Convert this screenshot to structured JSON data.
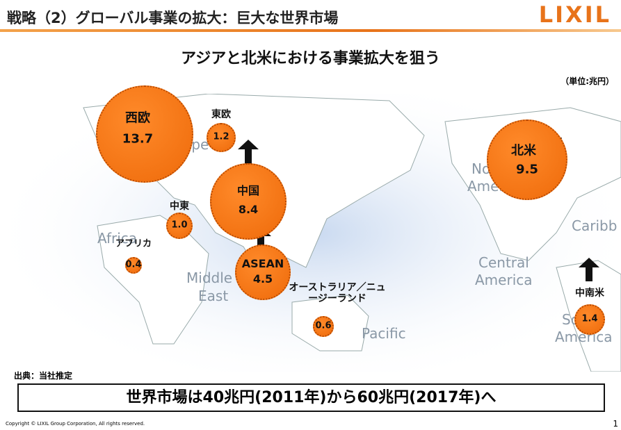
{
  "header": {
    "title": "戦略（2）グローバル事業の拡大：巨大な世界市場",
    "logo": "LIXIL"
  },
  "subtitle": "アジアと北米における事業拡大を狙う",
  "unit": "（単位:兆円）",
  "map_labels": [
    "Europe",
    "Africa",
    "Middle",
    "East",
    "Pacific",
    "North",
    "America",
    "Central",
    "America",
    "Caribb",
    "South",
    "America"
  ],
  "regions": [
    {
      "name": "西欧",
      "value": 13.7,
      "value_label": "13.7"
    },
    {
      "name": "東欧",
      "value": 1.2,
      "value_label": "1.2"
    },
    {
      "name": "中国",
      "value": 8.4,
      "value_label": "8.4"
    },
    {
      "name": "中東",
      "value": 1.0,
      "value_label": "1.0"
    },
    {
      "name": "アフリカ",
      "value": 0.4,
      "value_label": "0.4"
    },
    {
      "name": "ASEAN",
      "value": 4.5,
      "value_label": "4.5"
    },
    {
      "name": "オーストラリア／ニュージーランド",
      "value": 0.6,
      "value_label": "0.6"
    },
    {
      "name": "北米",
      "value": 9.5,
      "value_label": "9.5"
    },
    {
      "name": "中南米",
      "value": 1.4,
      "value_label": "1.4"
    }
  ],
  "source": "出典：当社推定",
  "summary": "世界市場は40兆円(2011年)から60兆円(2017年)へ",
  "copyright": "Copyright © LIXIL Group Corporation, All rights reserved.",
  "page": "1"
}
